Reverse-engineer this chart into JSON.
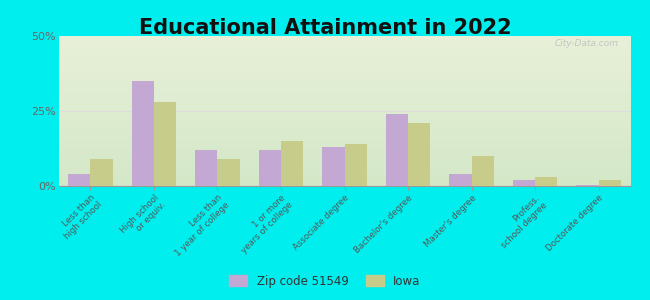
{
  "title": "Educational Attainment in 2022",
  "categories": [
    "Less than\nhigh school",
    "High school\nor equiv.",
    "Less than\n1 year of college",
    "1 or more\nyears of college",
    "Associate degree",
    "Bachelor's degree",
    "Master's degree",
    "Profess.\nschool degree",
    "Doctorate degree"
  ],
  "zip_values": [
    4,
    35,
    12,
    12,
    13,
    24,
    4,
    2,
    0.5
  ],
  "iowa_values": [
    9,
    28,
    9,
    15,
    14,
    21,
    10,
    3,
    2
  ],
  "zip_color": "#c4a8d4",
  "iowa_color": "#c8cc8a",
  "background_color": "#00eeee",
  "ylim": [
    0,
    50
  ],
  "yticks": [
    0,
    25,
    50
  ],
  "ytick_labels": [
    "0%",
    "25%",
    "50%"
  ],
  "legend_zip_label": "Zip code 51549",
  "legend_iowa_label": "Iowa",
  "title_fontsize": 15,
  "watermark": "City-Data.com"
}
